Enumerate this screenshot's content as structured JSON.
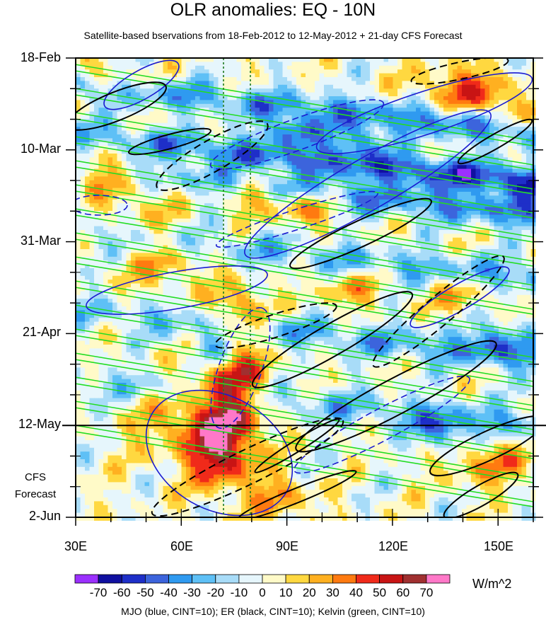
{
  "title": "OLR anomalies: EQ - 10N",
  "subtitle": "Satellite-based bservations from 18-Feb-2012 to 12-May-2012 + 21-day CFS Forecast",
  "chart_data": {
    "type": "heatmap",
    "title": "OLR anomalies: EQ - 10N",
    "subtitle": "Satellite-based bservations from 18-Feb-2012 to 12-May-2012 + 21-day CFS Forecast",
    "x_axis": {
      "range": [
        "30E",
        "160E"
      ],
      "ticks": [
        "30E",
        "60E",
        "90E",
        "120E",
        "150E"
      ]
    },
    "y_axis": {
      "range": [
        "18-Feb",
        "2-Jun"
      ],
      "ticks": [
        "18-Feb",
        "10-Mar",
        "31-Mar",
        "21-Apr",
        "12-May",
        "2-Jun"
      ],
      "orientation": "time increasing downward"
    },
    "observation_end": "12-May",
    "forecast_label": "CFS Forecast",
    "colorbar": {
      "labels": [
        "-70",
        "-60",
        "-50",
        "-40",
        "-30",
        "-20",
        "-10",
        "0",
        "10",
        "20",
        "30",
        "40",
        "50",
        "60",
        "70"
      ],
      "colors": [
        "#9b30ff",
        "#1010a0",
        "#1e2fc8",
        "#3c64dc",
        "#2f9af0",
        "#5ec0f6",
        "#a8dcf8",
        "#e6f6fc",
        "#fffac8",
        "#ffd840",
        "#ffb020",
        "#ff7a10",
        "#f02a1a",
        "#c81414",
        "#a03030",
        "#ff78c8"
      ],
      "units": "W/m^2"
    },
    "contours": [
      {
        "name": "MJO",
        "color": "#1a1ad0"
      },
      {
        "name": "ER",
        "color": "#000000"
      },
      {
        "name": "Kelvin",
        "color": "#22dd22"
      }
    ],
    "reference_lines": {
      "color": "#1e7a1e",
      "style": "dotted"
    }
  },
  "axes": {
    "y_ticks": [
      "18-Feb",
      "10-Mar",
      "31-Mar",
      "21-Apr",
      "12-May",
      "2-Jun"
    ],
    "x_ticks": [
      "30E",
      "60E",
      "90E",
      "120E",
      "150E"
    ],
    "forecast_line1": "CFS",
    "forecast_line2": "Forecast"
  },
  "colorbar": {
    "labels": [
      "-70",
      "-60",
      "-50",
      "-40",
      "-30",
      "-20",
      "-10",
      "0",
      "10",
      "20",
      "30",
      "40",
      "50",
      "60",
      "70"
    ],
    "units": "W/m^2"
  },
  "footnote": "MJO (blue, CINT=10); ER (black, CINT=10); Kelvin (green, CINT=10)"
}
